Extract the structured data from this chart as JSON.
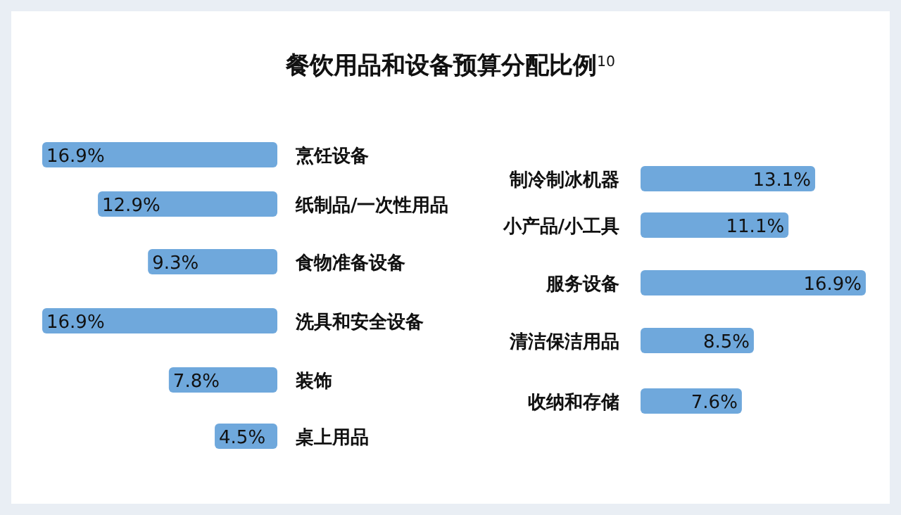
{
  "chart_data": [
    {
      "type": "bar",
      "orientation": "horizontal",
      "title": "餐饮用品和设备预算分配比例$^{10}$",
      "categories": [
        "烹饪设备",
        "纸制品/一次性用品",
        "食物准备设备",
        "洗具和安全设备",
        "装饰",
        "桌上用品"
      ],
      "values": [
        16.9,
        12.9,
        9.3,
        16.9,
        7.8,
        4.5
      ],
      "color": "#6fa8dc",
      "data_labels": true,
      "value_labels": [
        "16.9%",
        "12.9%",
        "9.3%",
        "16.9%",
        "7.8%",
        "4.5%"
      ]
    },
    {
      "type": "bar",
      "orientation": "horizontal",
      "categories": [
        "制冷制冰机器",
        "小产品/小工具",
        "服务设备",
        "清洁保洁用品",
        "收纳和存储"
      ],
      "values": [
        13.1,
        11.1,
        16.9,
        8.5,
        7.6
      ],
      "color": "#6fa8dc",
      "data_labels": true,
      "value_labels": [
        "13.1%",
        "11.1%",
        "16.9%",
        "8.5%",
        "7.6%"
      ]
    }
  ]
}
